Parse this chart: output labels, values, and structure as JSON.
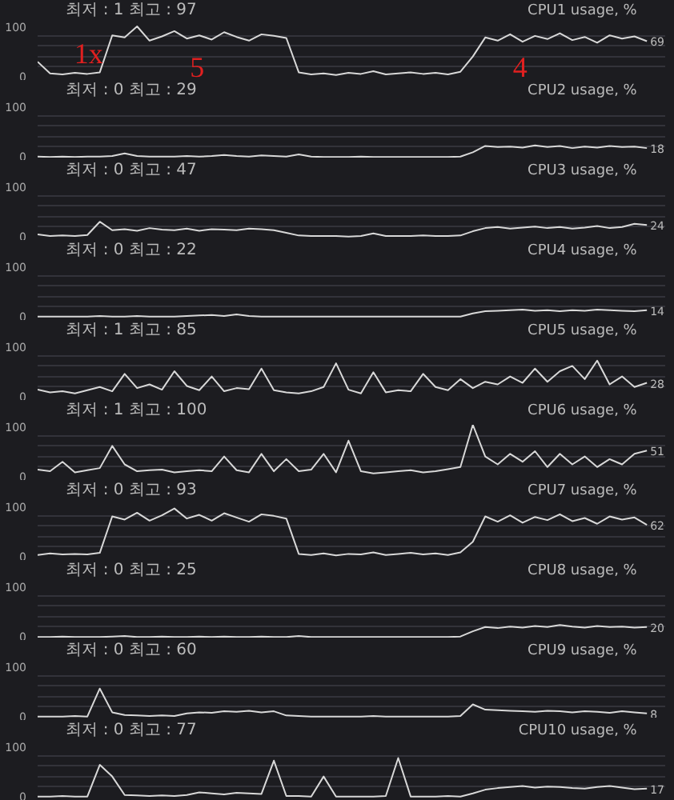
{
  "chart_data": [
    {
      "type": "line",
      "title": "CPU1 usage, %",
      "subtitle": "최저 : 1  최고 : 97",
      "annotations": [
        "1x",
        "5",
        "4"
      ],
      "color": "#d8d8d8",
      "ylim": [
        0,
        100
      ],
      "yticks": [
        0,
        {
          "value": 20,
          "label": null
        },
        {
          "value": 40,
          "label": null
        },
        {
          "value": 60,
          "label": null
        },
        {
          "value": 80,
          "label": null
        },
        100
      ],
      "grid": "y",
      "tick_labels": "y",
      "values": [
        30,
        8,
        6,
        9,
        7,
        10,
        80,
        76,
        97,
        70,
        78,
        88,
        74,
        80,
        72,
        86,
        77,
        70,
        82,
        79,
        75,
        10,
        6,
        8,
        5,
        9,
        7,
        12,
        6,
        8,
        10,
        7,
        9,
        6,
        11,
        40,
        76,
        70,
        82,
        68,
        79,
        73,
        84,
        71,
        77,
        66,
        80,
        74,
        78,
        69
      ],
      "value_labels": [
        null,
        null,
        null,
        null,
        null,
        null,
        null,
        null,
        null,
        null,
        null,
        null,
        null,
        null,
        null,
        null,
        null,
        null,
        null,
        null,
        null,
        null,
        null,
        null,
        null,
        null,
        null,
        null,
        null,
        null,
        null,
        null,
        null,
        null,
        null,
        null,
        null,
        null,
        null,
        null,
        null,
        null,
        null,
        null,
        null,
        null,
        null,
        null,
        null,
        "69"
      ]
    },
    {
      "type": "line",
      "title": "CPU2 usage, %",
      "subtitle": "최저 : 0  최고 : 29",
      "color": "#d8d8d8",
      "ylim": [
        0,
        100
      ],
      "yticks": [
        0,
        {
          "value": 20,
          "label": null
        },
        {
          "value": 40,
          "label": null
        },
        {
          "value": 60,
          "label": null
        },
        {
          "value": 80,
          "label": null
        },
        100
      ],
      "grid": "y",
      "tick_labels": "y",
      "values": [
        2,
        1,
        2,
        1,
        2,
        2,
        3,
        8,
        3,
        2,
        2,
        2,
        3,
        2,
        3,
        5,
        3,
        2,
        4,
        3,
        2,
        6,
        2,
        1,
        1,
        1,
        2,
        1,
        1,
        1,
        1,
        1,
        1,
        1,
        2,
        10,
        22,
        20,
        21,
        19,
        23,
        20,
        22,
        18,
        21,
        19,
        22,
        20,
        21,
        18
      ],
      "value_labels": [
        null,
        null,
        null,
        null,
        null,
        null,
        null,
        null,
        null,
        null,
        null,
        null,
        null,
        null,
        null,
        null,
        null,
        null,
        null,
        null,
        null,
        null,
        null,
        null,
        null,
        null,
        null,
        null,
        null,
        null,
        null,
        null,
        null,
        null,
        null,
        null,
        null,
        null,
        null,
        null,
        null,
        null,
        null,
        null,
        null,
        null,
        null,
        null,
        null,
        "18"
      ]
    },
    {
      "type": "line",
      "title": "CPU3 usage, %",
      "subtitle": "최저 : 0  최고 : 47",
      "color": "#d8d8d8",
      "ylim": [
        0,
        100
      ],
      "yticks": [
        0,
        {
          "value": 20,
          "label": null
        },
        {
          "value": 40,
          "label": null
        },
        {
          "value": 60,
          "label": null
        },
        {
          "value": 80,
          "label": null
        },
        100
      ],
      "grid": "y",
      "tick_labels": "y",
      "values": [
        6,
        3,
        4,
        3,
        5,
        30,
        14,
        16,
        13,
        18,
        15,
        14,
        17,
        13,
        16,
        15,
        14,
        17,
        16,
        14,
        9,
        4,
        3,
        3,
        3,
        2,
        3,
        8,
        3,
        3,
        3,
        4,
        3,
        3,
        4,
        12,
        18,
        20,
        17,
        19,
        21,
        18,
        20,
        17,
        19,
        22,
        18,
        20,
        26,
        24
      ],
      "value_labels": [
        null,
        null,
        null,
        null,
        null,
        null,
        null,
        null,
        null,
        null,
        null,
        null,
        null,
        null,
        null,
        null,
        null,
        null,
        null,
        null,
        null,
        null,
        null,
        null,
        null,
        null,
        null,
        null,
        null,
        null,
        null,
        null,
        null,
        null,
        null,
        null,
        null,
        null,
        null,
        null,
        null,
        null,
        null,
        null,
        null,
        null,
        null,
        null,
        null,
        "24"
      ]
    },
    {
      "type": "line",
      "title": "CPU4 usage, %",
      "subtitle": "최저 : 0  최고 : 22",
      "color": "#d8d8d8",
      "ylim": [
        0,
        100
      ],
      "yticks": [
        0,
        {
          "value": 20,
          "label": null
        },
        {
          "value": 40,
          "label": null
        },
        {
          "value": 60,
          "label": null
        },
        {
          "value": 80,
          "label": null
        },
        100
      ],
      "grid": "y",
      "tick_labels": "y",
      "values": [
        2,
        2,
        2,
        2,
        2,
        3,
        2,
        2,
        3,
        2,
        2,
        2,
        3,
        4,
        5,
        3,
        6,
        3,
        2,
        2,
        2,
        2,
        2,
        2,
        2,
        2,
        2,
        2,
        2,
        2,
        2,
        2,
        2,
        2,
        2,
        8,
        12,
        13,
        14,
        15,
        13,
        14,
        12,
        14,
        13,
        15,
        14,
        13,
        12,
        14
      ],
      "value_labels": [
        null,
        null,
        null,
        null,
        null,
        null,
        null,
        null,
        null,
        null,
        null,
        null,
        null,
        null,
        null,
        null,
        null,
        null,
        null,
        null,
        null,
        null,
        null,
        null,
        null,
        null,
        null,
        null,
        null,
        null,
        null,
        null,
        null,
        null,
        null,
        null,
        null,
        null,
        null,
        null,
        null,
        null,
        null,
        null,
        null,
        null,
        null,
        null,
        null,
        "14"
      ]
    },
    {
      "type": "line",
      "title": "CPU5 usage, %",
      "subtitle": "최저 : 1  최고 : 85",
      "color": "#d8d8d8",
      "ylim": [
        0,
        100
      ],
      "yticks": [
        0,
        {
          "value": 20,
          "label": null
        },
        {
          "value": 40,
          "label": null
        },
        {
          "value": 60,
          "label": null
        },
        {
          "value": 80,
          "label": null
        },
        100
      ],
      "grid": "y",
      "tick_labels": "y",
      "values": [
        15,
        10,
        12,
        8,
        14,
        20,
        12,
        45,
        18,
        25,
        15,
        50,
        22,
        14,
        40,
        12,
        18,
        16,
        55,
        14,
        10,
        8,
        12,
        20,
        65,
        15,
        8,
        48,
        10,
        14,
        12,
        45,
        20,
        14,
        35,
        18,
        30,
        25,
        40,
        28,
        55,
        30,
        50,
        60,
        35,
        70,
        25,
        40,
        20,
        28
      ],
      "value_labels": [
        null,
        null,
        null,
        null,
        null,
        null,
        null,
        null,
        null,
        null,
        null,
        null,
        null,
        null,
        null,
        null,
        null,
        null,
        null,
        null,
        null,
        null,
        null,
        null,
        null,
        null,
        null,
        null,
        null,
        null,
        null,
        null,
        null,
        null,
        null,
        null,
        null,
        null,
        null,
        null,
        null,
        null,
        null,
        null,
        null,
        null,
        null,
        null,
        null,
        "28"
      ]
    },
    {
      "type": "line",
      "title": "CPU6 usage, %",
      "subtitle": "최저 : 1  최고 : 100",
      "color": "#d8d8d8",
      "ylim": [
        0,
        100
      ],
      "yticks": [
        0,
        {
          "value": 20,
          "label": null
        },
        {
          "value": 40,
          "label": null
        },
        {
          "value": 60,
          "label": null
        },
        {
          "value": 80,
          "label": null
        },
        100
      ],
      "grid": "y",
      "tick_labels": "y",
      "values": [
        15,
        12,
        30,
        10,
        14,
        18,
        60,
        25,
        12,
        14,
        15,
        10,
        12,
        14,
        12,
        40,
        14,
        10,
        45,
        12,
        35,
        12,
        15,
        45,
        10,
        70,
        12,
        8,
        10,
        12,
        14,
        10,
        12,
        16,
        20,
        100,
        40,
        25,
        45,
        30,
        50,
        20,
        45,
        25,
        40,
        20,
        35,
        25,
        45,
        51
      ],
      "value_labels": [
        null,
        null,
        null,
        null,
        null,
        null,
        null,
        null,
        null,
        null,
        null,
        null,
        null,
        null,
        null,
        null,
        null,
        null,
        null,
        null,
        null,
        null,
        null,
        null,
        null,
        null,
        null,
        null,
        null,
        null,
        null,
        null,
        null,
        null,
        null,
        null,
        null,
        null,
        null,
        null,
        null,
        null,
        null,
        null,
        null,
        null,
        null,
        null,
        null,
        "51"
      ]
    },
    {
      "type": "line",
      "title": "CPU7 usage, %",
      "subtitle": "최저 : 0  최고 : 93",
      "color": "#d8d8d8",
      "ylim": [
        0,
        100
      ],
      "yticks": [
        0,
        {
          "value": 20,
          "label": null
        },
        {
          "value": 40,
          "label": null
        },
        {
          "value": 60,
          "label": null
        },
        {
          "value": 80,
          "label": null
        },
        100
      ],
      "grid": "y",
      "tick_labels": "y",
      "values": [
        5,
        8,
        6,
        7,
        6,
        9,
        78,
        72,
        85,
        70,
        80,
        93,
        74,
        81,
        70,
        84,
        76,
        68,
        82,
        79,
        74,
        7,
        5,
        8,
        4,
        7,
        6,
        10,
        5,
        7,
        9,
        6,
        8,
        5,
        10,
        30,
        78,
        68,
        80,
        66,
        77,
        71,
        82,
        69,
        75,
        64,
        78,
        72,
        76,
        62
      ],
      "value_labels": [
        null,
        null,
        null,
        null,
        null,
        null,
        null,
        null,
        null,
        null,
        null,
        null,
        null,
        null,
        null,
        null,
        null,
        null,
        null,
        null,
        null,
        null,
        null,
        null,
        null,
        null,
        null,
        null,
        null,
        null,
        null,
        null,
        null,
        null,
        null,
        null,
        null,
        null,
        null,
        null,
        null,
        null,
        null,
        null,
        null,
        null,
        null,
        null,
        null,
        "62"
      ]
    },
    {
      "type": "line",
      "title": "CPU8 usage, %",
      "subtitle": "최저 : 0  최고 : 25",
      "color": "#d8d8d8",
      "ylim": [
        0,
        100
      ],
      "yticks": [
        0,
        {
          "value": 20,
          "label": null
        },
        {
          "value": 40,
          "label": null
        },
        {
          "value": 60,
          "label": null
        },
        {
          "value": 80,
          "label": null
        },
        100
      ],
      "grid": "y",
      "tick_labels": "y",
      "values": [
        1,
        1,
        2,
        1,
        1,
        1,
        2,
        3,
        1,
        1,
        2,
        1,
        1,
        2,
        1,
        2,
        1,
        1,
        2,
        1,
        1,
        3,
        1,
        1,
        1,
        1,
        1,
        1,
        1,
        1,
        1,
        1,
        1,
        1,
        2,
        12,
        20,
        18,
        21,
        19,
        22,
        20,
        24,
        21,
        19,
        22,
        20,
        21,
        19,
        20
      ],
      "value_labels": [
        null,
        null,
        null,
        null,
        null,
        null,
        null,
        null,
        null,
        null,
        null,
        null,
        null,
        null,
        null,
        null,
        null,
        null,
        null,
        null,
        null,
        null,
        null,
        null,
        null,
        null,
        null,
        null,
        null,
        null,
        null,
        null,
        null,
        null,
        null,
        null,
        null,
        null,
        null,
        null,
        null,
        null,
        null,
        null,
        null,
        null,
        null,
        null,
        null,
        "20"
      ]
    },
    {
      "type": "line",
      "title": "CPU9 usage, %",
      "subtitle": "최저 : 0  최고 : 60",
      "color": "#d8d8d8",
      "ylim": [
        0,
        100
      ],
      "yticks": [
        0,
        {
          "value": 20,
          "label": null
        },
        {
          "value": 40,
          "label": null
        },
        {
          "value": 60,
          "label": null
        },
        {
          "value": 80,
          "label": null
        },
        100
      ],
      "grid": "y",
      "tick_labels": "y",
      "values": [
        2,
        2,
        2,
        3,
        2,
        55,
        10,
        5,
        4,
        3,
        4,
        3,
        8,
        10,
        9,
        12,
        11,
        13,
        10,
        12,
        4,
        3,
        2,
        2,
        2,
        2,
        2,
        3,
        2,
        2,
        2,
        2,
        2,
        2,
        3,
        25,
        15,
        14,
        13,
        12,
        11,
        13,
        12,
        10,
        12,
        11,
        9,
        12,
        10,
        8
      ],
      "value_labels": [
        null,
        null,
        null,
        null,
        null,
        null,
        null,
        null,
        null,
        null,
        null,
        null,
        null,
        null,
        null,
        null,
        null,
        null,
        null,
        null,
        null,
        null,
        null,
        null,
        null,
        null,
        null,
        null,
        null,
        null,
        null,
        null,
        null,
        null,
        null,
        null,
        null,
        null,
        null,
        null,
        null,
        null,
        null,
        null,
        null,
        null,
        null,
        null,
        null,
        "8"
      ]
    },
    {
      "type": "line",
      "title": "CPU10 usage, %",
      "subtitle": "최저 : 0  최고 : 77",
      "color": "#d8d8d8",
      "ylim": [
        0,
        100
      ],
      "yticks": [
        0,
        {
          "value": 20,
          "label": null
        },
        {
          "value": 40,
          "label": null
        },
        {
          "value": 60,
          "label": null
        },
        {
          "value": 80,
          "label": null
        },
        100
      ],
      "grid": "y",
      "tick_labels": "y",
      "values": [
        2,
        2,
        3,
        2,
        2,
        62,
        40,
        5,
        4,
        3,
        4,
        3,
        5,
        10,
        8,
        6,
        9,
        8,
        7,
        70,
        3,
        3,
        2,
        40,
        2,
        2,
        2,
        2,
        3,
        75,
        2,
        2,
        2,
        3,
        2,
        8,
        15,
        18,
        20,
        22,
        19,
        21,
        20,
        18,
        17,
        20,
        22,
        19,
        16,
        17
      ],
      "value_labels": [
        null,
        null,
        null,
        null,
        null,
        null,
        null,
        null,
        null,
        null,
        null,
        null,
        null,
        null,
        null,
        null,
        null,
        null,
        null,
        null,
        null,
        null,
        null,
        null,
        null,
        null,
        null,
        null,
        null,
        null,
        null,
        null,
        null,
        null,
        null,
        null,
        null,
        null,
        null,
        null,
        null,
        null,
        null,
        null,
        null,
        null,
        null,
        null,
        null,
        "17"
      ]
    }
  ]
}
